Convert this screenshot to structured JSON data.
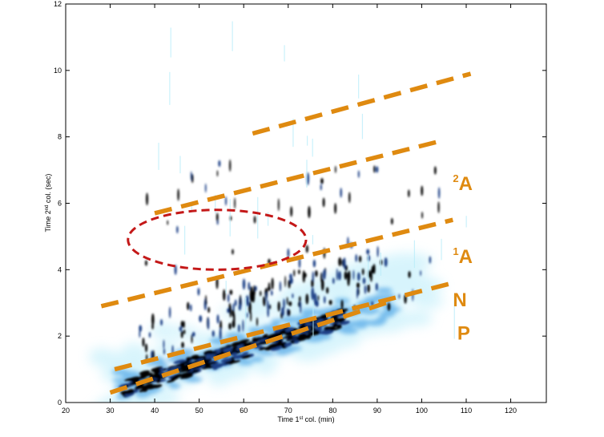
{
  "chart_data": {
    "type": "heatmap",
    "xlabel": {
      "main": "Time 1",
      "sup": "st",
      "rest": " col. (min)"
    },
    "ylabel": {
      "main": "Time 2",
      "sup": "nd",
      "rest": " col. (sec)"
    },
    "xlim": [
      20,
      128
    ],
    "ylim": [
      0,
      12
    ],
    "xticks": [
      20,
      30,
      40,
      50,
      60,
      70,
      80,
      90,
      100,
      110,
      120
    ],
    "yticks": [
      0,
      2,
      4,
      6,
      8,
      10,
      12
    ],
    "colormap": [
      "#ffffff",
      "#b8ecfa",
      "#4fa6e6",
      "#1e3f86",
      "#000000"
    ],
    "dashed_line_color": "#df8a10",
    "ellipse_color": "#c41818",
    "dashed_lines": [
      {
        "x1": 30,
        "y1": 0.3,
        "x2": 92,
        "y2": 3.0
      },
      {
        "x1": 31,
        "y1": 1.0,
        "x2": 107,
        "y2": 3.6
      },
      {
        "x1": 28,
        "y1": 2.9,
        "x2": 107,
        "y2": 5.5
      },
      {
        "x1": 40,
        "y1": 5.7,
        "x2": 105,
        "y2": 7.9
      },
      {
        "x1": 62,
        "y1": 8.1,
        "x2": 111,
        "y2": 9.9
      }
    ],
    "ellipse": {
      "cx": 54,
      "cy": 4.9,
      "rx": 20,
      "ry": 0.9
    },
    "region_labels": [
      {
        "sup": "2",
        "text": "A",
        "x": 107,
        "y": 6.4
      },
      {
        "sup": "1",
        "text": "A",
        "x": 107,
        "y": 4.2
      },
      {
        "sup": "",
        "text": "N",
        "x": 107,
        "y": 2.9
      },
      {
        "sup": "",
        "text": "P",
        "x": 108,
        "y": 1.9
      }
    ],
    "ridge": {
      "x1": 30,
      "y1": 0.3,
      "x2": 98,
      "y2": 3.2
    }
  }
}
